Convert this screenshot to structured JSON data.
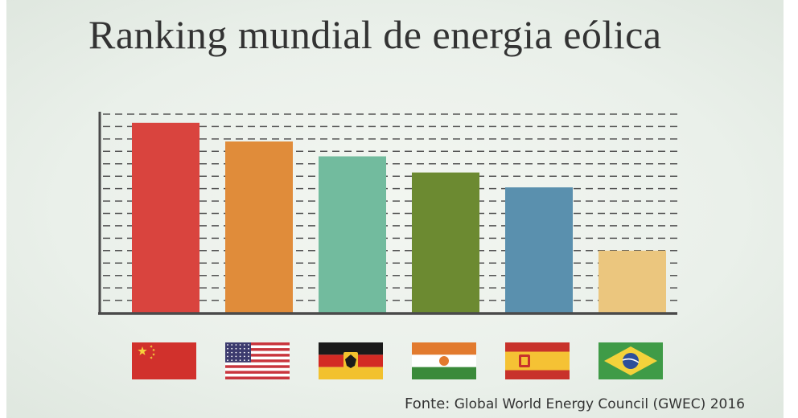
{
  "title": "Ranking mundial de energia eólica",
  "source": {
    "label": "Fonte:",
    "text": "Global World Energy Council (GWEC) 2016"
  },
  "colors": {
    "axis": "#4a4a4a",
    "grid": "#555555",
    "background": "#ecf1ea"
  },
  "chart_data": {
    "type": "bar",
    "categories": [
      "china-flag-icon",
      "usa-flag-icon",
      "germany-flag-icon",
      "india-flag-icon",
      "spain-flag-icon",
      "brazil-flag-icon"
    ],
    "values": [
      15.3,
      13.8,
      12.6,
      11.3,
      10.1,
      5.0
    ],
    "ylim": [
      0,
      16
    ],
    "grid": true,
    "bar_colors": [
      "#d9443e",
      "#e08c3a",
      "#72bb9e",
      "#6c8a31",
      "#5a90ae",
      "#ebc67e"
    ],
    "xlabel": "",
    "ylabel": ""
  }
}
